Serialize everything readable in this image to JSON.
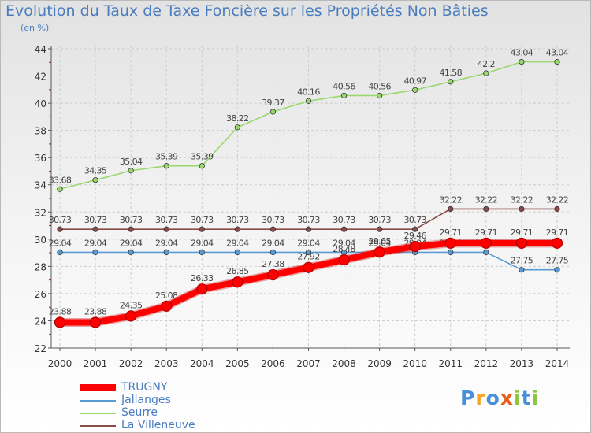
{
  "title": "Evolution du Taux de Taxe Foncière sur les Propriétés Non Bâties",
  "subtitle": "(en %)",
  "logo": {
    "letters": [
      "P",
      "r",
      "o",
      "x",
      "i",
      "t",
      "i"
    ],
    "colors": [
      "#4a90d9",
      "#f5a623",
      "#4a90d9",
      "#e85d1a",
      "#8cc63f",
      "#4a90d9",
      "#8cc63f"
    ]
  },
  "chart_data": {
    "type": "line",
    "x": [
      "2000",
      "2001",
      "2002",
      "2003",
      "2004",
      "2005",
      "2006",
      "2007",
      "2008",
      "2009",
      "2010",
      "2011",
      "2012",
      "2013",
      "2014"
    ],
    "ylim": [
      22,
      44
    ],
    "yticks": [
      "22",
      "24",
      "26",
      "28",
      "30",
      "32",
      "34",
      "36",
      "38",
      "40",
      "42",
      "44"
    ],
    "grid": true,
    "legend_position": "bottom-left",
    "series": [
      {
        "name": "TRUGNY",
        "color": "#ff0000",
        "thick": true,
        "values": [
          23.88,
          23.88,
          24.35,
          25.08,
          26.33,
          26.85,
          27.38,
          27.92,
          28.48,
          29.05,
          29.46,
          29.71,
          29.71,
          29.71,
          29.71
        ],
        "labels": [
          "23.88",
          "23.88",
          "24.35",
          "25.08",
          "26.33",
          "26.85",
          "27.38",
          "27.92",
          "28.48",
          "29.05",
          "29.46",
          "29.71",
          "29.71",
          "29.71",
          "29.71"
        ]
      },
      {
        "name": "Jallanges",
        "color": "#5b9bd5",
        "thick": false,
        "values": [
          29.04,
          29.04,
          29.04,
          29.04,
          29.04,
          29.04,
          29.04,
          29.04,
          29.04,
          29.04,
          29.04,
          29.04,
          29.04,
          27.75,
          27.75
        ],
        "labels": [
          "29.04",
          "29.04",
          "29.04",
          "29.04",
          "29.04",
          "29.04",
          "29.04",
          "29.04",
          "29.04",
          "29.04",
          "29.04",
          "29.04",
          "29.04",
          "27.75",
          "27.75"
        ]
      },
      {
        "name": "Seurre",
        "color": "#9ad86f",
        "thick": false,
        "values": [
          33.68,
          34.35,
          35.04,
          35.39,
          35.39,
          38.22,
          39.37,
          40.16,
          40.56,
          40.56,
          40.97,
          41.58,
          42.2,
          43.04,
          43.04
        ],
        "labels": [
          "33.68",
          "34.35",
          "35.04",
          "35.39",
          "35.39",
          "38.22",
          "39.37",
          "40.16",
          "40.56",
          "40.56",
          "40.97",
          "41.58",
          "42.2",
          "43.04",
          "43.04"
        ]
      },
      {
        "name": "La Villeneuve",
        "color": "#8b4a4a",
        "thick": false,
        "values": [
          30.73,
          30.73,
          30.73,
          30.73,
          30.73,
          30.73,
          30.73,
          30.73,
          30.73,
          30.73,
          30.73,
          32.22,
          32.22,
          32.22,
          32.22
        ],
        "labels": [
          "30.73",
          "30.73",
          "30.73",
          "30.73",
          "30.73",
          "30.73",
          "30.73",
          "30.73",
          "30.73",
          "30.73",
          "30.73",
          "32.22",
          "32.22",
          "32.22",
          "32.22"
        ]
      }
    ]
  }
}
